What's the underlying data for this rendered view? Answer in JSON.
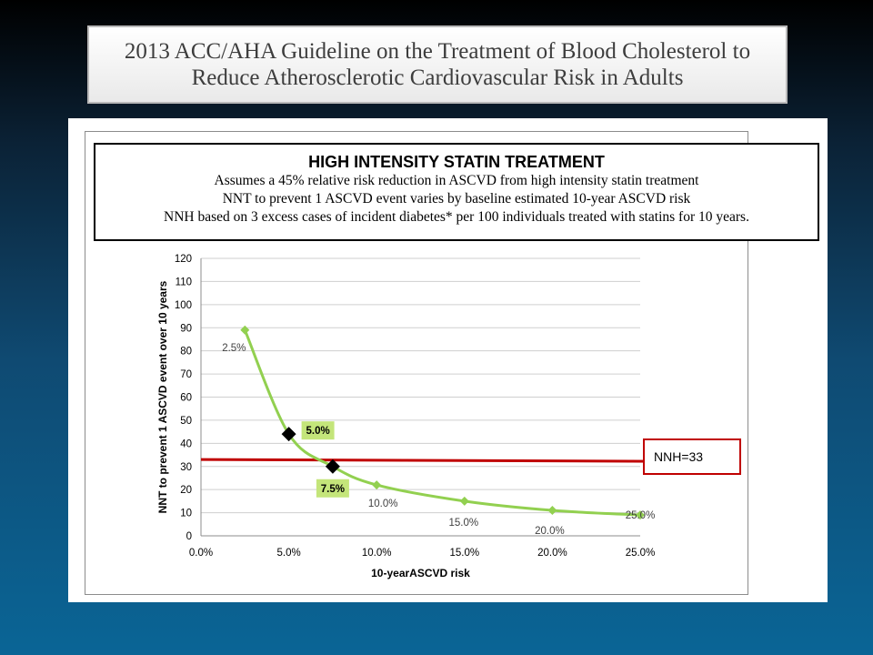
{
  "slide_title": "2013 ACC/AHA Guideline on the Treatment of Blood Cholesterol to\nReduce Atherosclerotic Cardiovascular Risk in Adults",
  "info_box": {
    "heading": "HIGH INTENSITY STATIN TREATMENT",
    "lines": [
      "Assumes a 45% relative risk reduction in ASCVD from high intensity statin treatment",
      "NNT to prevent 1 ASCVD event varies by baseline estimated 10-year ASCVD risk",
      "NNH based on 3 excess cases of incident diabetes* per 100 individuals treated with statins for 10 years."
    ]
  },
  "chart_data": {
    "type": "line",
    "xlabel": "10-yearASCVD risk",
    "ylabel": "NNT to prevent 1 ASCVD event over 10 years",
    "xlim": [
      0,
      25
    ],
    "ylim": [
      0,
      120
    ],
    "x_ticks": [
      "0.0%",
      "5.0%",
      "10.0%",
      "15.0%",
      "20.0%",
      "25.0%"
    ],
    "y_ticks": [
      0,
      10,
      20,
      30,
      40,
      50,
      60,
      70,
      80,
      90,
      100,
      110,
      120
    ],
    "grid": "horizontal",
    "series": [
      {
        "color": "#92d050",
        "x": [
          2.5,
          10,
          15,
          20,
          25
        ],
        "y": [
          89,
          22,
          15,
          11,
          9
        ],
        "labels": [
          "2.5%",
          "10.0%",
          "15.0%",
          "20.0%",
          "25.0%"
        ]
      }
    ],
    "highlighted_points": [
      {
        "x": 5,
        "y": 44,
        "label": "5.0%"
      },
      {
        "x": 7.5,
        "y": 30,
        "label": "7.5%"
      }
    ],
    "reference_line": {
      "y": 33,
      "label": "NNH=33",
      "color": "#c00000"
    }
  }
}
